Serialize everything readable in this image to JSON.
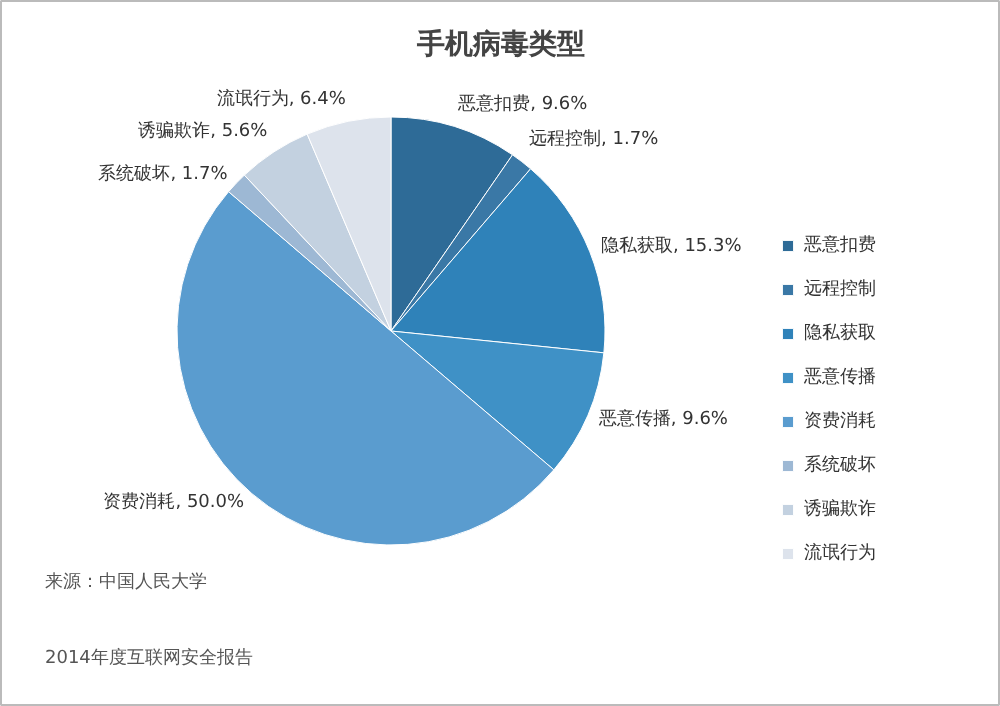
{
  "chart_data": {
    "type": "pie",
    "title": "手机病毒类型",
    "categories": [
      "恶意扣费",
      "远程控制",
      "隐私获取",
      "恶意传播",
      "资费消耗",
      "系统破坏",
      "诱骗欺诈",
      "流氓行为"
    ],
    "values": [
      9.6,
      1.7,
      15.3,
      9.6,
      50.0,
      1.7,
      5.6,
      6.4
    ],
    "value_labels": [
      "恶意扣费, 9.6%",
      "远程控制, 1.7%",
      "隐私获取, 15.3%",
      "恶意传播, 9.6%",
      "资费消耗, 50.0%",
      "系统破坏, 1.7%",
      "诱骗欺诈, 5.6%",
      "流氓行为, 6.4%"
    ],
    "colors": [
      "#2e6b97",
      "#3a78a6",
      "#2f82b9",
      "#3f91c6",
      "#5a9ccf",
      "#9db8d4",
      "#c3d1e0",
      "#dde3ec"
    ],
    "legend": "right",
    "annotations": [
      "来源：中国人民大学",
      "2014年度互联网安全报告"
    ]
  }
}
